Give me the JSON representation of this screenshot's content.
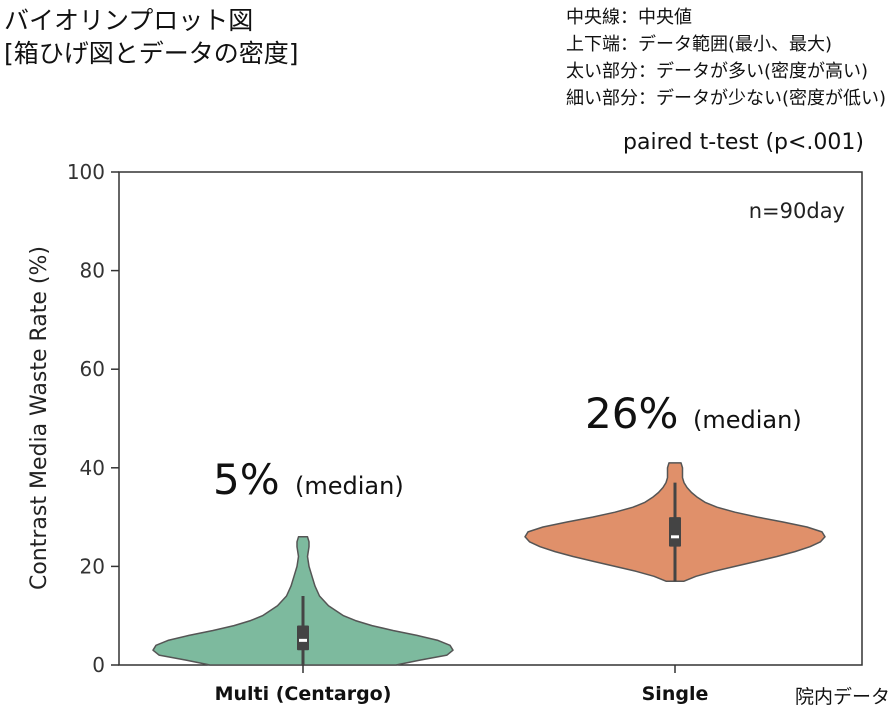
{
  "title_lines": [
    "バイオリンプロット図",
    "[箱ひげ図とデータの密度]"
  ],
  "legend_lines": [
    "中央線：中央値",
    "上下端：データ範囲(最小、最大)",
    "太い部分：データが多い(密度が高い)",
    "細い部分：データが少ない(密度が低い)"
  ],
  "stat_test": "paired t-test (p<.001)",
  "source_note": "院内データ",
  "chart_data": {
    "type": "violin",
    "ylabel": "Contrast Media Waste Rate (%)",
    "ylim": [
      0,
      100
    ],
    "yticks": [
      "0",
      "20",
      "40",
      "60",
      "80",
      "100"
    ],
    "categories": [
      "Multi (Centargo)",
      "Single"
    ],
    "sample_note": "n=90day",
    "series": [
      {
        "category": "Multi (Centargo)",
        "color": "#7dba9e",
        "median": 5,
        "q1": 3,
        "q3": 8,
        "min": 0,
        "max": 26,
        "whisker_high": 14,
        "density": [
          [
            0,
            0.62
          ],
          [
            1,
            0.78
          ],
          [
            2,
            0.96
          ],
          [
            3,
            1.0
          ],
          [
            4,
            0.98
          ],
          [
            5,
            0.9
          ],
          [
            6,
            0.76
          ],
          [
            7,
            0.6
          ],
          [
            8,
            0.46
          ],
          [
            9,
            0.35
          ],
          [
            10,
            0.27
          ],
          [
            12,
            0.17
          ],
          [
            14,
            0.11
          ],
          [
            16,
            0.08
          ],
          [
            18,
            0.06
          ],
          [
            20,
            0.04
          ],
          [
            22,
            0.03
          ],
          [
            24,
            0.04
          ],
          [
            25,
            0.04
          ],
          [
            26,
            0.03
          ]
        ],
        "annotation_value": "5%",
        "annotation_text": "(median)"
      },
      {
        "category": "Single",
        "color": "#e0906a",
        "median": 26,
        "q1": 24,
        "q3": 30,
        "min": 17,
        "max": 41,
        "whisker_high": 37,
        "density": [
          [
            17,
            0.06
          ],
          [
            18,
            0.14
          ],
          [
            19,
            0.26
          ],
          [
            20,
            0.4
          ],
          [
            21,
            0.54
          ],
          [
            22,
            0.68
          ],
          [
            23,
            0.8
          ],
          [
            24,
            0.9
          ],
          [
            25,
            0.97
          ],
          [
            26,
            1.0
          ],
          [
            27,
            0.98
          ],
          [
            28,
            0.88
          ],
          [
            29,
            0.72
          ],
          [
            30,
            0.55
          ],
          [
            31,
            0.4
          ],
          [
            32,
            0.28
          ],
          [
            33,
            0.2
          ],
          [
            34,
            0.15
          ],
          [
            35,
            0.11
          ],
          [
            36,
            0.08
          ],
          [
            37,
            0.06
          ],
          [
            38,
            0.05
          ],
          [
            39,
            0.05
          ],
          [
            40,
            0.05
          ],
          [
            41,
            0.04
          ]
        ],
        "annotation_value": "26%",
        "annotation_text": "(median)"
      }
    ]
  }
}
